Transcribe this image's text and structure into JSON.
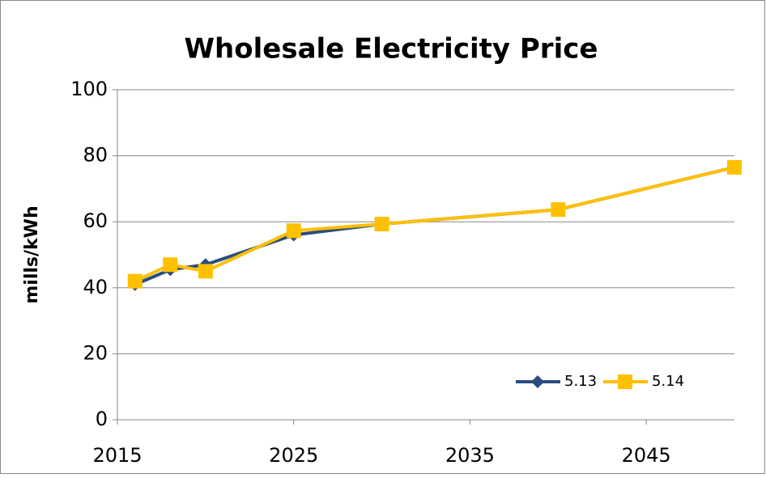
{
  "chart_data": {
    "type": "line",
    "title": "Wholesale Electricity Price",
    "y_label": "mills/kWh",
    "x": [
      2016,
      2018,
      2020,
      2025,
      2030,
      2040,
      2050
    ],
    "series": [
      {
        "name": "5.13",
        "color": "#2a4d7f",
        "marker": "diamond",
        "values": [
          41,
          45.5,
          47,
          56,
          59.3,
          63.7,
          76.5
        ]
      },
      {
        "name": "5.14",
        "color": "#ffc000",
        "marker": "square",
        "values": [
          42,
          47,
          45,
          57.3,
          59.3,
          63.7,
          76.5
        ]
      }
    ],
    "xlim": [
      2015,
      2050
    ],
    "xticks": [
      2015,
      2025,
      2035,
      2045
    ],
    "ylim": [
      0,
      100
    ],
    "yticks": [
      0,
      20,
      40,
      60,
      80,
      100
    ],
    "grid": true,
    "legend": "lower right"
  }
}
